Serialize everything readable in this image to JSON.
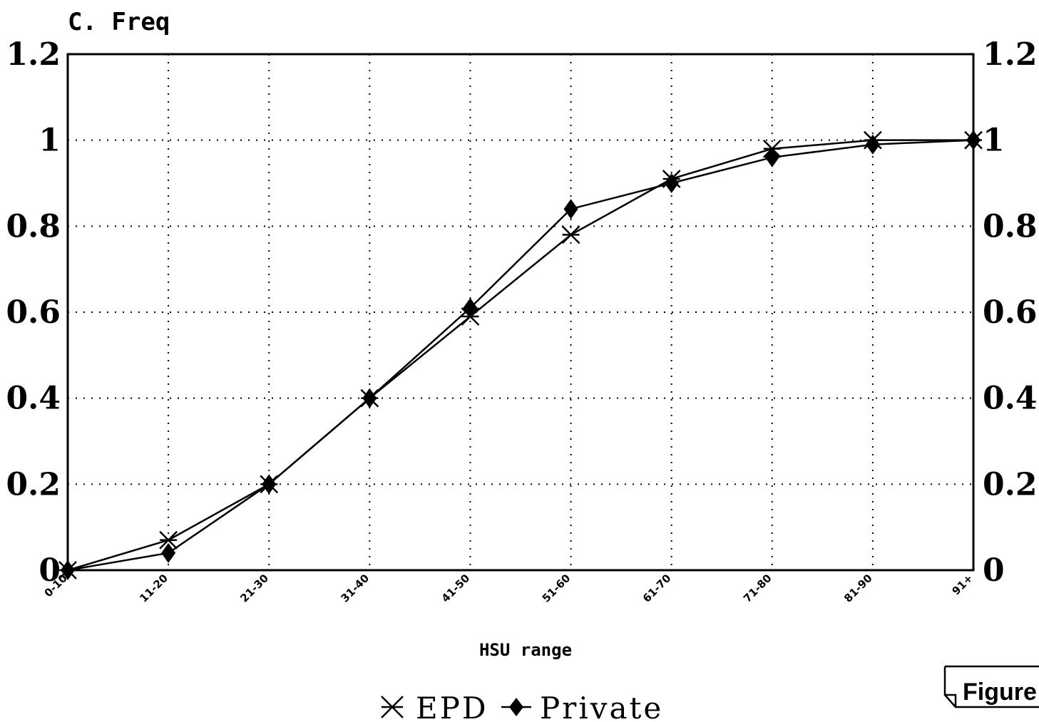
{
  "chart_data": {
    "type": "line",
    "title": "C. Freq",
    "xlabel": "HSU range",
    "ylabel": "",
    "categories": [
      "0-10",
      "11-20",
      "21-30",
      "31-40",
      "41-50",
      "51-60",
      "61-70",
      "71-80",
      "81-90",
      "91+"
    ],
    "ylim": [
      0,
      1.2
    ],
    "yticks": [
      "0",
      "0.2",
      "0.4",
      "0.6",
      "0.8",
      "1",
      "1.2"
    ],
    "grid": true,
    "legend_position": "bottom",
    "series": [
      {
        "name": "EPD",
        "marker": "star-x",
        "values": [
          0.0,
          0.07,
          0.2,
          0.4,
          0.59,
          0.78,
          0.91,
          0.98,
          1.0,
          1.0
        ]
      },
      {
        "name": "Private",
        "marker": "diamond",
        "values": [
          0.0,
          0.04,
          0.2,
          0.4,
          0.61,
          0.84,
          0.9,
          0.96,
          0.99,
          1.0
        ]
      }
    ],
    "annotation": "Figure"
  }
}
